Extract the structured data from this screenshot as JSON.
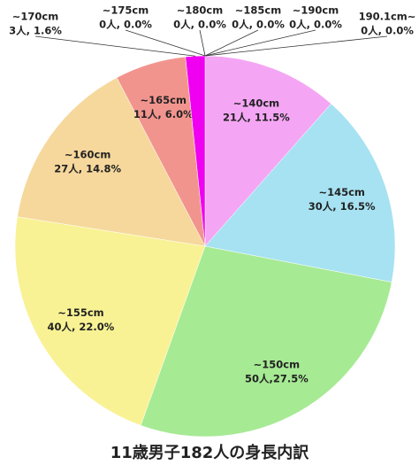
{
  "chart_data": {
    "type": "pie",
    "title": "11歳男子182人の身長内訳",
    "categories": [
      "~140cm",
      "~145cm",
      "~150cm",
      "~155cm",
      "~160cm",
      "~165cm",
      "~170cm",
      "~175cm",
      "~180cm",
      "~185cm",
      "~190cm",
      "190.1cm~"
    ],
    "values": [
      21,
      30,
      50,
      40,
      27,
      11,
      3,
      0,
      0,
      0,
      0,
      0
    ],
    "value_labels": [
      "21人, 11.5%",
      "30人, 16.5%",
      "50人,27.5%",
      "40人, 22.0%",
      "27人, 14.8%",
      "11人, 6.0%",
      "3人, 1.6%",
      "0人, 0.0%",
      "0人, 0.0%",
      "0人, 0.0%",
      "0人, 0.0%",
      "0人, 0.0%"
    ],
    "colors": [
      "#f4a6f4",
      "#a6e2f2",
      "#a6ea94",
      "#f8f294",
      "#f6d89c",
      "#f2948e",
      "#f000f0",
      "#b0b0f0",
      "#90d0a0",
      "#d0d080",
      "#c0a0e0",
      "#a0c0e0"
    ]
  }
}
